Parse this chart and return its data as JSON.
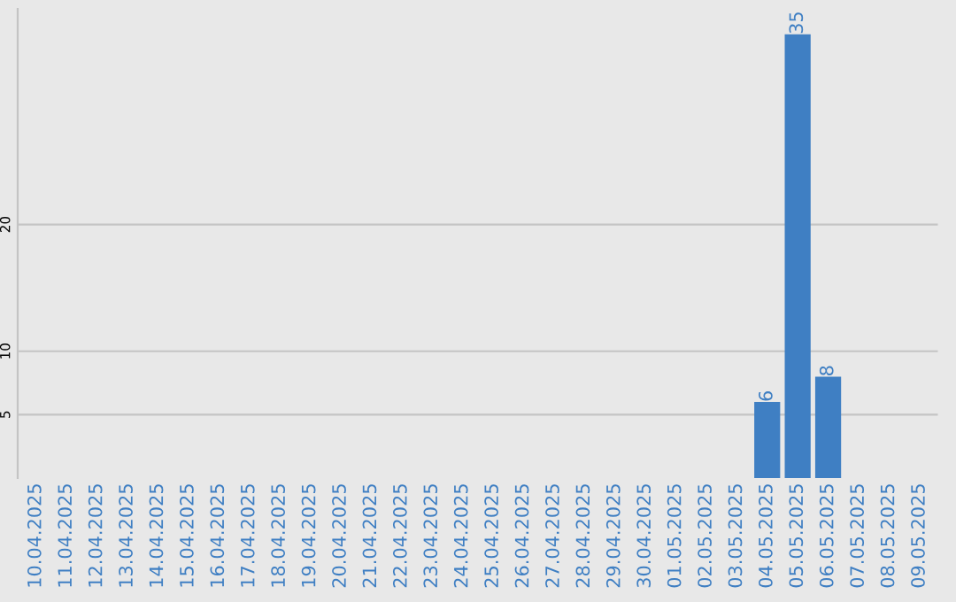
{
  "chart_data": {
    "type": "bar",
    "categories": [
      "10.04.2025",
      "11.04.2025",
      "12.04.2025",
      "13.04.2025",
      "14.04.2025",
      "15.04.2025",
      "16.04.2025",
      "17.04.2025",
      "18.04.2025",
      "19.04.2025",
      "20.04.2025",
      "21.04.2025",
      "22.04.2025",
      "23.04.2025",
      "24.04.2025",
      "25.04.2025",
      "26.04.2025",
      "27.04.2025",
      "28.04.2025",
      "29.04.2025",
      "30.04.2025",
      "01.05.2025",
      "02.05.2025",
      "03.05.2025",
      "04.05.2025",
      "05.05.2025",
      "06.05.2025",
      "07.05.2025",
      "08.05.2025",
      "09.05.2025"
    ],
    "values": [
      0,
      0,
      0,
      0,
      0,
      0,
      0,
      0,
      0,
      0,
      0,
      0,
      0,
      0,
      0,
      0,
      0,
      0,
      0,
      0,
      0,
      0,
      0,
      0,
      6,
      35,
      8,
      0,
      0,
      0
    ],
    "value_labels": [
      null,
      null,
      null,
      null,
      null,
      null,
      null,
      null,
      null,
      null,
      null,
      null,
      null,
      null,
      null,
      null,
      null,
      null,
      null,
      null,
      null,
      null,
      null,
      null,
      "6",
      "35",
      "8",
      null,
      null,
      null
    ],
    "color": "#3f7fc3",
    "ylim": [
      0,
      37
    ],
    "yticks": [
      5,
      10,
      20
    ],
    "grid": "y"
  }
}
